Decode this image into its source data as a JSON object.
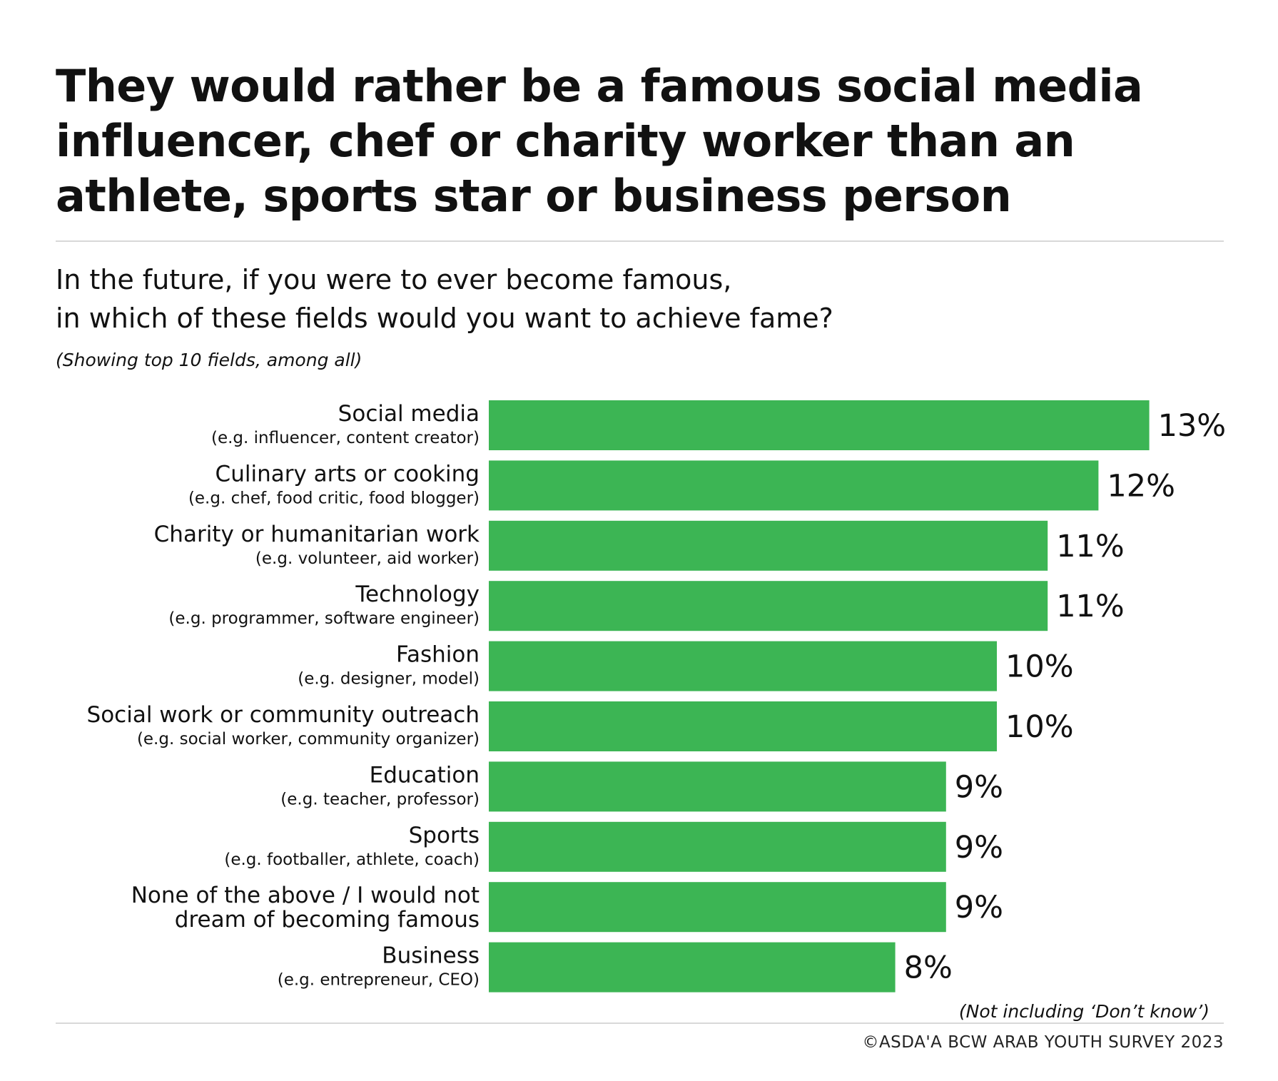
{
  "header": {
    "title_lines": [
      "They would rather be a famous social media",
      "influencer, chef or charity worker than an",
      "athlete, sports star or business person"
    ],
    "question_lines": [
      "In the future, if you were to ever become famous,",
      "in which of these fields would you want to achieve fame?"
    ],
    "note": "(Showing top 10 fields, among  all)"
  },
  "chart_data": {
    "type": "bar",
    "orientation": "horizontal",
    "bar_color": "#3cb554",
    "categories": [
      {
        "label_lines": [
          "Social media"
        ],
        "sub": "(e.g. influencer, content creator)"
      },
      {
        "label_lines": [
          "Culinary arts or cooking"
        ],
        "sub": "(e.g. chef, food critic, food blogger)"
      },
      {
        "label_lines": [
          "Charity or humanitarian work"
        ],
        "sub": "(e.g. volunteer, aid worker)"
      },
      {
        "label_lines": [
          "Technology"
        ],
        "sub": "(e.g. programmer, software engineer)"
      },
      {
        "label_lines": [
          "Fashion"
        ],
        "sub": "(e.g. designer, model)"
      },
      {
        "label_lines": [
          "Social work or community outreach"
        ],
        "sub": "(e.g. social worker, community organizer)"
      },
      {
        "label_lines": [
          "Education"
        ],
        "sub": "(e.g. teacher, professor)"
      },
      {
        "label_lines": [
          "Sports"
        ],
        "sub": "(e.g. footballer, athlete, coach)"
      },
      {
        "label_lines": [
          "None of the above / I would not",
          "dream of becoming famous"
        ],
        "sub": ""
      },
      {
        "label_lines": [
          "Business"
        ],
        "sub": "(e.g. entrepreneur, CEO)"
      }
    ],
    "values": [
      13,
      12,
      11,
      11,
      10,
      10,
      9,
      9,
      9,
      8
    ],
    "value_labels": [
      "13%",
      "12%",
      "11%",
      "11%",
      "10%",
      "10%",
      "9%",
      "9%",
      "9%",
      "8%"
    ],
    "xlim": [
      0,
      13
    ]
  },
  "footer": {
    "footnote": "(Not including ‘Don’t know’)",
    "copyright": "©ASDA'A BCW ARAB YOUTH SURVEY 2023"
  }
}
